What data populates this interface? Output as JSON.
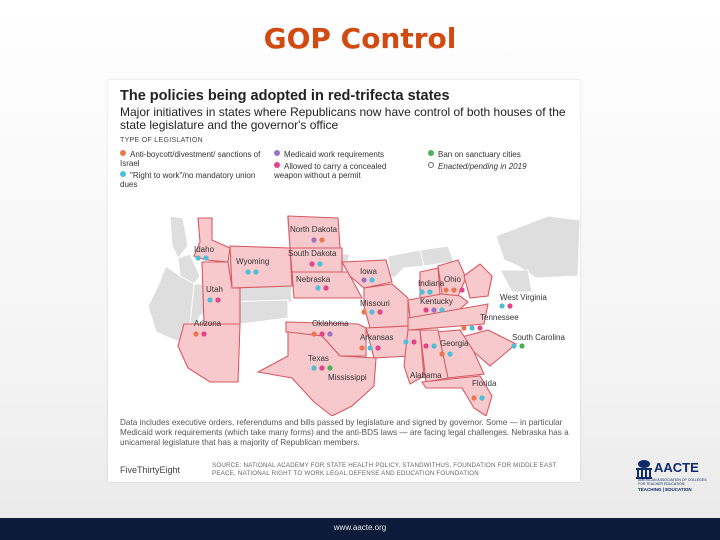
{
  "slide": {
    "title": "GOP Control",
    "footer_url": "www.aacte.org"
  },
  "graphic": {
    "title": "The policies being adopted in red-trifecta states",
    "subtitle": "Major initiatives in states where Republicans now have control of both houses of the state legislature and the governor's office",
    "legend_heading": "TYPE OF LEGISLATION",
    "legend": [
      {
        "label": "Anti-boycott/divestment/ sanctions of Israel",
        "color": "#e8784f"
      },
      {
        "label": "\"Right to work\"/no mandatory union dues",
        "color": "#4dbfd9"
      },
      {
        "label": "Medicaid work requirements",
        "color": "#9a72c6"
      },
      {
        "label": "Allowed to carry a concealed weapon without a permit",
        "color": "#e0458a"
      },
      {
        "label": "Ban on sanctuary cities",
        "color": "#4caf5c"
      },
      {
        "label": "Enacted/pending in 2019",
        "color": "#666666"
      }
    ],
    "note": "Data includes executive orders, referendums and bills passed by legislature and signed by governor. Some — in particular Medicaid work requirements (which take many forms) and the anti-BDS laws — are facing legal challenges. Nebraska has a unicameral legislature that has a majority of Republican members.",
    "credit": "FiveThirtyEight",
    "source": "SOURCE: NATIONAL ACADEMY FOR STATE HEALTH POLICY, STANDWITHUS, FOUNDATION FOR MIDDLE EAST PEACE, NATIONAL RIGHT TO WORK LEGAL DEFENSE AND EDUCATION FOUNDATION",
    "colors": {
      "trifecta_fill": "#f7c9cc",
      "trifecta_stroke": "#d65a63",
      "other_fill": "#dedede"
    },
    "states": [
      {
        "name": "North Dakota"
      },
      {
        "name": "South Dakota"
      },
      {
        "name": "Idaho"
      },
      {
        "name": "Wyoming"
      },
      {
        "name": "Nebraska"
      },
      {
        "name": "Iowa"
      },
      {
        "name": "Utah"
      },
      {
        "name": "Missouri"
      },
      {
        "name": "Indiana"
      },
      {
        "name": "Ohio"
      },
      {
        "name": "Kentucky"
      },
      {
        "name": "West Virginia"
      },
      {
        "name": "Arizona"
      },
      {
        "name": "Oklahoma"
      },
      {
        "name": "Arkansas"
      },
      {
        "name": "Tennessee"
      },
      {
        "name": "South Carolina"
      },
      {
        "name": "Georgia"
      },
      {
        "name": "Texas"
      },
      {
        "name": "Mississippi"
      },
      {
        "name": "Alabama"
      },
      {
        "name": "Florida"
      }
    ]
  },
  "logo": {
    "name": "AACTE",
    "subline": "AMERICAN ASSOCIATION OF COLLEGES FOR TEACHER EDUCATION",
    "tagline": "TEACHING | EDUCATION"
  }
}
